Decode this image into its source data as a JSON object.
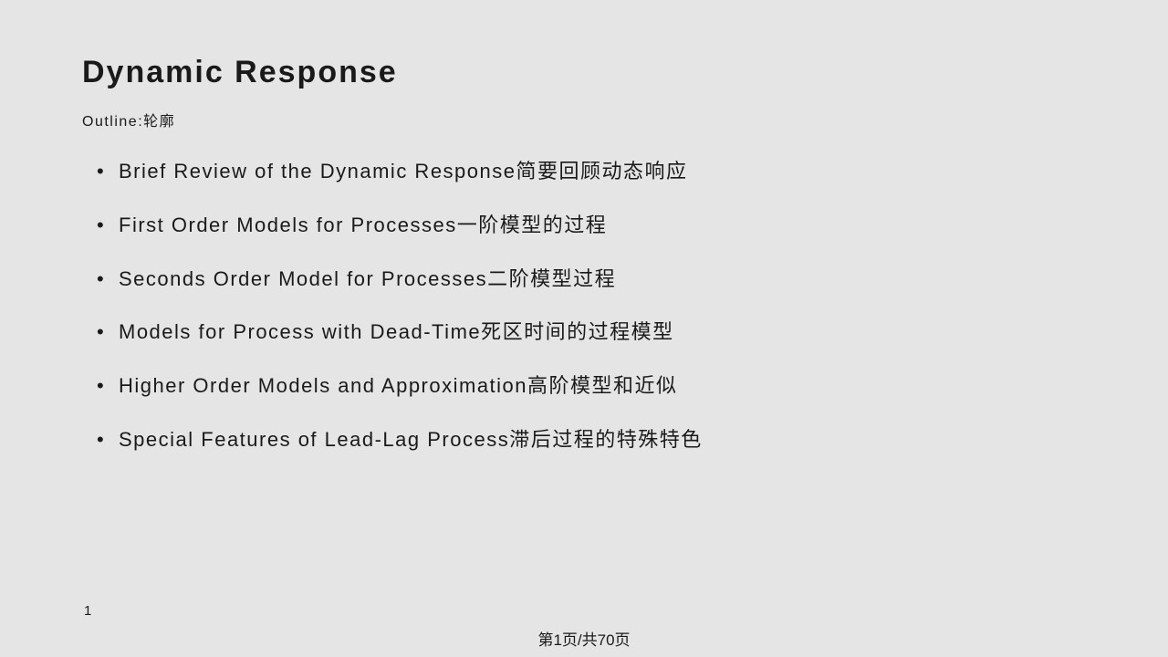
{
  "slide": {
    "title": "Dynamic Response",
    "subtitle": "Outline:轮廓",
    "bullets": [
      "Brief Review of the Dynamic Response简要回顾动态响应",
      "First Order Models for Processes一阶模型的过程",
      "Seconds Order Model for Processes二阶模型过程",
      "Models for Process with Dead-Time死区时间的过程模型",
      "Higher Order Models and Approximation高阶模型和近似",
      "Special Features of Lead-Lag Process滞后过程的特殊特色"
    ],
    "page_number": "1",
    "footer": "第1页/共70页"
  },
  "styling": {
    "background_color": "#e5e5e5",
    "text_color": "#1a1a1a",
    "title_fontsize": 34,
    "subtitle_fontsize": 16,
    "bullet_fontsize": 22,
    "footer_fontsize": 17,
    "letter_spacing": "1.5px"
  }
}
